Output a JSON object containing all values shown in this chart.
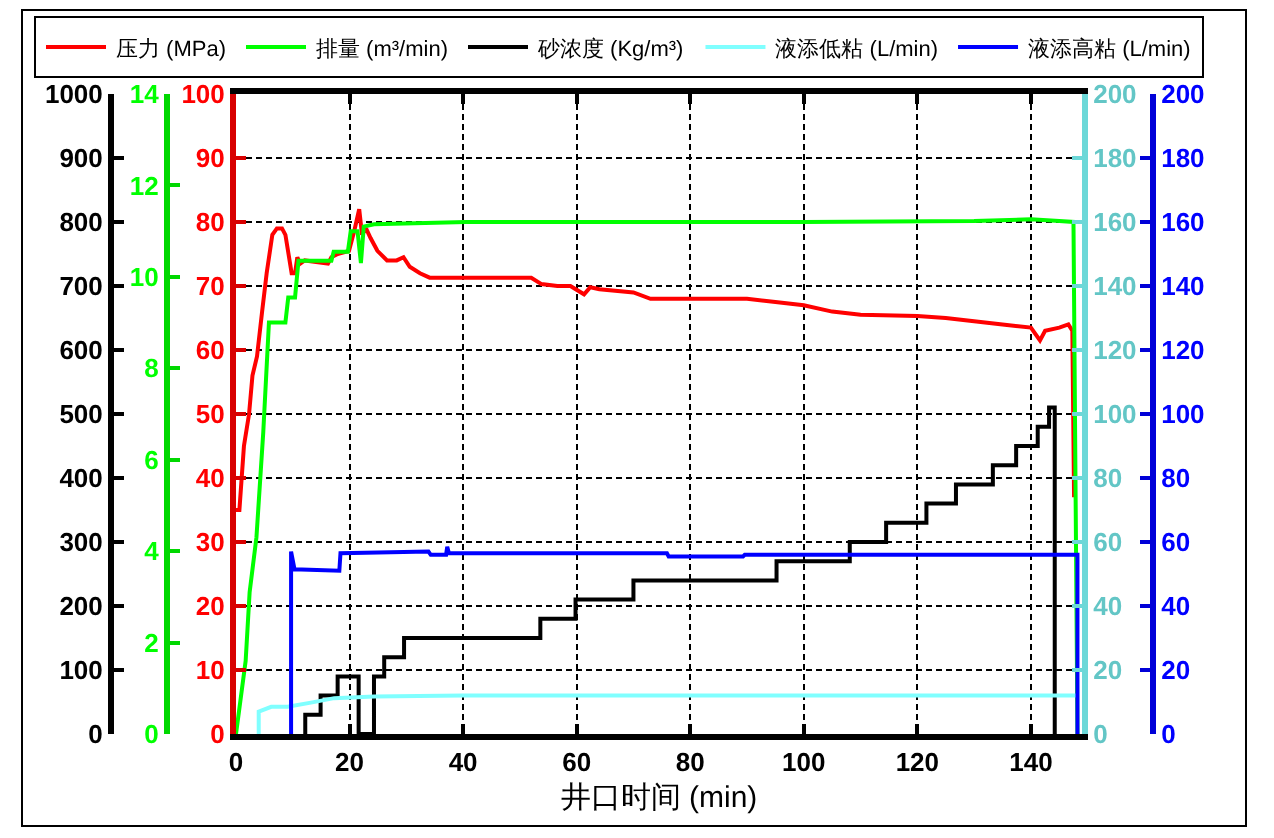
{
  "chart_data": [
    {
      "type": "line",
      "xlabel": "井口时间 (min)",
      "xlim": [
        0,
        149
      ],
      "xticks": [
        0,
        20,
        40,
        60,
        80,
        100,
        120,
        140
      ],
      "ylim": [
        0,
        100
      ],
      "yticks": [
        0,
        10,
        20,
        30,
        40,
        50,
        60,
        70,
        80,
        90,
        100
      ],
      "y2lim": [
        0,
        14
      ],
      "y2ticks": [
        0,
        2,
        4,
        6,
        8,
        10,
        12,
        14
      ],
      "y3lim": [
        0,
        1000
      ],
      "y3ticks": [
        0,
        100,
        200,
        300,
        400,
        500,
        600,
        700,
        800,
        900,
        1000
      ],
      "grid": true,
      "legend": "top",
      "series": [
        {
          "name": "压力 (MPa)",
          "color": "#ff0000",
          "x": [
            0,
            0.6,
            1.4,
            2.3,
            2.9,
            3.7,
            4.6,
            5.4,
            6.4,
            7.2,
            8.1,
            8.7,
            9.8,
            10.4,
            10.8,
            11.3,
            12.1,
            16.2,
            16.8,
            17.9,
            19.9,
            20.8,
            21.7,
            22.2,
            22.9,
            23.7,
            24.9,
            26.6,
            28.3,
            29.5,
            30.6,
            32.4,
            34.1,
            40.5,
            52,
            53.8,
            56.6,
            58.9,
            61.3,
            62.4,
            64,
            70,
            73,
            90,
            95,
            100,
            105,
            110,
            120,
            125,
            130,
            135,
            140,
            141.6,
            142.5,
            145,
            146.6,
            147.3,
            147.6
          ],
          "values": [
            35,
            35,
            45,
            50,
            56,
            59,
            66,
            72,
            78,
            79,
            79,
            78,
            72,
            72,
            74.5,
            73.5,
            74,
            73.5,
            74.5,
            75,
            75.5,
            78.5,
            82,
            78,
            79,
            77.5,
            75.5,
            74,
            74,
            74.5,
            73,
            72,
            71.3,
            71.3,
            71.3,
            70.3,
            70,
            70,
            68.7,
            69.8,
            69.5,
            69,
            68,
            68,
            67.5,
            67,
            66,
            65.5,
            65.3,
            65,
            64.5,
            64,
            63.5,
            61.5,
            63,
            63.5,
            64,
            63,
            37
          ]
        },
        {
          "name": "排量 (m³/min)",
          "color": "#00ff00",
          "axis": "y2",
          "x": [
            0,
            1.7,
            2.4,
            3.6,
            4.8,
            5.8,
            8.7,
            9.2,
            10.4,
            11,
            16.8,
            17.2,
            19.7,
            20.2,
            21.4,
            22,
            22.5,
            24.3,
            40.5,
            100,
            130,
            140,
            145,
            147.5,
            148.2
          ],
          "values": [
            0,
            1.6,
            3.1,
            4.3,
            6.6,
            9.0,
            9.0,
            9.55,
            9.55,
            10.35,
            10.35,
            10.55,
            10.55,
            11.0,
            11.0,
            10.3,
            11.1,
            11.15,
            11.2,
            11.2,
            11.22,
            11.26,
            11.22,
            11.2,
            0
          ]
        },
        {
          "name": "砂浓度 (Kg/m³)",
          "color": "#000000",
          "axis": "y3",
          "type": "step",
          "x": [
            12.2,
            12.2,
            14.9,
            17.9,
            21.6,
            24.3,
            26.1,
            29.6,
            53.6,
            59.8,
            70.0,
            95.2,
            108.1,
            114.5,
            121.6,
            126.8,
            133.3,
            137.4,
            141.2,
            143.2,
            144.2
          ],
          "values": [
            0,
            30,
            60,
            90,
            0,
            90,
            120,
            150,
            180,
            210,
            240,
            270,
            300,
            330,
            360,
            390,
            420,
            450,
            480,
            510,
            0
          ]
        }
      ]
    },
    {
      "type": "line",
      "xlim": [
        0,
        149
      ],
      "xticks": [
        0,
        20,
        40,
        60,
        80,
        100,
        120,
        140
      ],
      "tick_labels": "y",
      "y2lim": [
        0,
        200
      ],
      "y2ticks": [
        0,
        20,
        40,
        60,
        80,
        100,
        120,
        140,
        160,
        180,
        200
      ],
      "legend": "top",
      "series": [
        {
          "name": "液添低粘 (L/min)",
          "color": "#80ffff",
          "axis": "y2",
          "x": [
            4.0,
            4.0,
            6.2,
            9.1,
            13.2,
            17.3,
            24.3,
            40,
            60,
            80,
            100,
            120,
            140,
            148.2
          ],
          "values": [
            0,
            7,
            8.5,
            8.5,
            9.8,
            11.2,
            11.7,
            12,
            12,
            12,
            12,
            12,
            12,
            12
          ]
        }
      ]
    },
    {
      "type": "line",
      "xlim": [
        0,
        149
      ],
      "xticks": [
        0,
        20,
        40,
        60,
        80,
        100,
        120,
        140
      ],
      "tick_labels": "y",
      "y2lim": [
        0,
        200
      ],
      "y2ticks": [
        0,
        20,
        40,
        60,
        80,
        100,
        120,
        140,
        160,
        180,
        200
      ],
      "legend": "top",
      "series": [
        {
          "name": "液添高粘 (L/min)",
          "color": "#0000ff",
          "axis": "y2",
          "x": [
            9.7,
            9.7,
            10.3,
            18.2,
            18.4,
            33.9,
            34.3,
            37.0,
            37.2,
            37.5,
            52.4,
            52.6,
            75.9,
            76.2,
            89.3,
            89.6,
            148.2,
            148.2
          ],
          "values": [
            0,
            57,
            51.5,
            51,
            56.5,
            57,
            56,
            56,
            58.5,
            56.5,
            56.5,
            56.5,
            56.5,
            55.5,
            55.5,
            56,
            56,
            0
          ]
        }
      ]
    }
  ]
}
